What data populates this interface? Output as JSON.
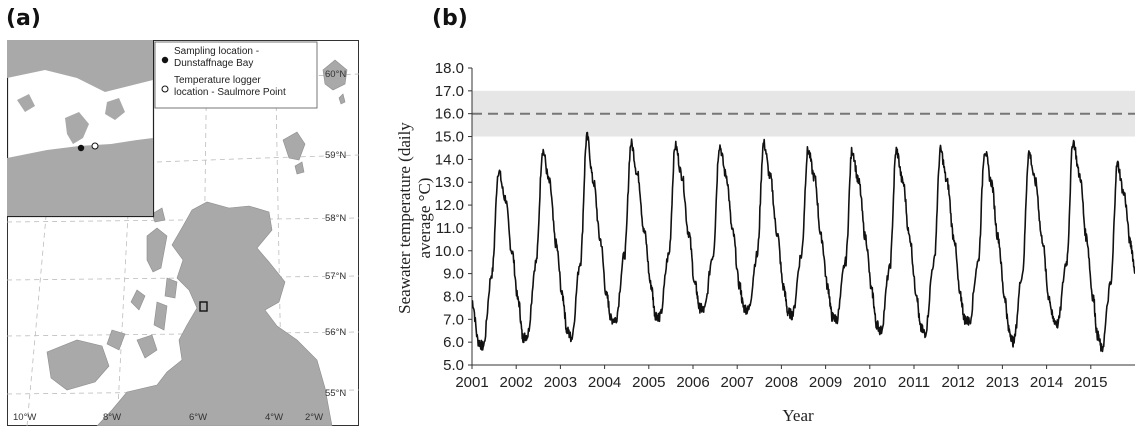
{
  "panel_a": {
    "label": "(a)",
    "legend": [
      {
        "symbol": "filled-circle",
        "text_line1": "Sampling location -",
        "text_line2": "Dunstaffnage Bay"
      },
      {
        "symbol": "open-circle",
        "text_line1": "Temperature logger",
        "text_line2": "location - Saulmore Point"
      }
    ],
    "lat_labels": [
      "60°N",
      "59°N",
      "58°N",
      "57°N",
      "56°N",
      "55°N"
    ],
    "lon_labels": [
      "10°W",
      "8°W",
      "6°W",
      "4°W",
      "2°W"
    ],
    "colors": {
      "land": "#a9a9a9",
      "sea": "#ffffff",
      "inset_bg": "#a9a9a9"
    }
  },
  "panel_b": {
    "label": "(b)"
  },
  "chart_data": {
    "type": "line",
    "title": "",
    "xlabel": "Year",
    "ylabel_line1": "Seawater temperature (daily",
    "ylabel_line2": "average °C)",
    "xlim": [
      2001.0,
      2016.0
    ],
    "ylim": [
      5.0,
      18.0
    ],
    "x_ticks": [
      "2001",
      "2002",
      "2003",
      "2004",
      "2005",
      "2006",
      "2007",
      "2008",
      "2009",
      "2010",
      "2011",
      "2012",
      "2013",
      "2014",
      "2015"
    ],
    "y_ticks": [
      "5.0",
      "6.0",
      "7.0",
      "8.0",
      "9.0",
      "10.0",
      "11.0",
      "12.0",
      "13.0",
      "14.0",
      "15.0",
      "16.0",
      "17.0",
      "18.0"
    ],
    "threshold_line": 16.0,
    "threshold_band": [
      15.0,
      17.0
    ],
    "colors": {
      "line": "#111111",
      "band": "#e6e6e6",
      "threshold": "#777777"
    },
    "series": [
      {
        "x": [
          2001.0,
          2001.15,
          2001.25,
          2001.45,
          2001.6,
          2001.75,
          2001.9,
          2002.05,
          2002.15,
          2002.25,
          2002.45,
          2002.6,
          2002.75,
          2002.9,
          2003.05,
          2003.15,
          2003.25,
          2003.45,
          2003.6,
          2003.75,
          2003.9,
          2004.05,
          2004.15,
          2004.25,
          2004.45,
          2004.6,
          2004.75,
          2004.9,
          2005.05,
          2005.15,
          2005.25,
          2005.45,
          2005.6,
          2005.75,
          2005.9,
          2006.05,
          2006.15,
          2006.25,
          2006.45,
          2006.6,
          2006.75,
          2006.9,
          2007.05,
          2007.15,
          2007.25,
          2007.45,
          2007.6,
          2007.75,
          2007.9,
          2008.05,
          2008.15,
          2008.25,
          2008.45,
          2008.6,
          2008.75,
          2008.9,
          2009.05,
          2009.15,
          2009.25,
          2009.45,
          2009.6,
          2009.75,
          2009.9,
          2010.05,
          2010.15,
          2010.25,
          2010.45,
          2010.6,
          2010.75,
          2010.9,
          2011.05,
          2011.15,
          2011.25,
          2011.45,
          2011.6,
          2011.75,
          2011.9,
          2012.05,
          2012.15,
          2012.25,
          2012.45,
          2012.6,
          2012.75,
          2012.9,
          2013.05,
          2013.15,
          2013.25,
          2013.45,
          2013.6,
          2013.75,
          2013.9,
          2014.05,
          2014.15,
          2014.25,
          2014.45,
          2014.6,
          2014.75,
          2014.9,
          2015.05,
          2015.15,
          2015.25,
          2015.45,
          2015.6,
          2015.75,
          2015.9,
          2016.0
        ],
        "y": [
          7.8,
          6.0,
          5.8,
          9.0,
          13.5,
          12.3,
          10.0,
          7.8,
          6.2,
          6.3,
          9.5,
          14.4,
          13.0,
          10.3,
          8.0,
          6.5,
          6.2,
          9.5,
          15.0,
          13.0,
          10.5,
          8.0,
          7.0,
          7.0,
          9.8,
          14.7,
          13.3,
          10.8,
          8.5,
          7.2,
          7.1,
          9.8,
          14.6,
          13.3,
          10.8,
          8.5,
          7.5,
          7.4,
          9.8,
          14.6,
          13.3,
          10.8,
          8.5,
          7.5,
          7.4,
          9.8,
          14.7,
          13.2,
          10.8,
          8.4,
          7.3,
          7.2,
          9.8,
          14.4,
          13.2,
          10.6,
          8.4,
          7.1,
          7.0,
          9.5,
          14.4,
          13.0,
          10.6,
          8.2,
          6.8,
          6.5,
          9.2,
          14.4,
          13.0,
          10.6,
          8.2,
          6.6,
          6.4,
          9.5,
          14.4,
          13.0,
          10.6,
          8.0,
          7.0,
          6.9,
          9.5,
          14.4,
          13.0,
          10.6,
          8.0,
          6.5,
          6.0,
          9.0,
          14.3,
          13.0,
          10.5,
          8.0,
          7.0,
          6.8,
          9.5,
          14.8,
          13.3,
          10.6,
          8.0,
          6.3,
          5.7,
          8.5,
          13.8,
          12.5,
          10.3,
          9.2
        ]
      }
    ]
  }
}
